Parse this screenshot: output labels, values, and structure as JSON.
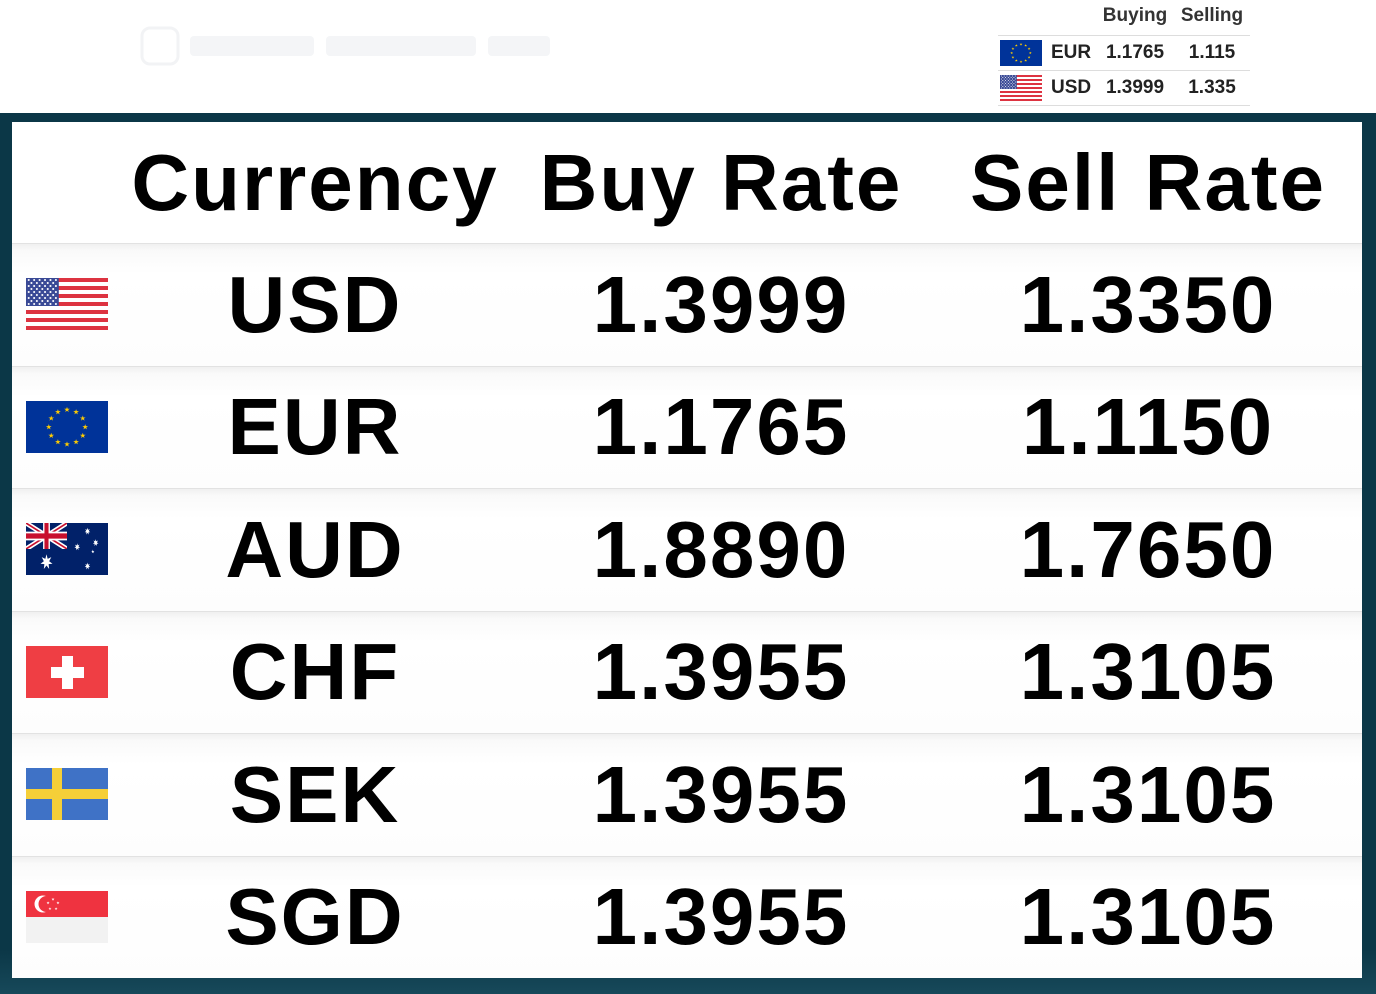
{
  "colors": {
    "frame": "#0b3747",
    "panel_background": "#ffffff",
    "text": "#000000",
    "ticker_text": "#222222"
  },
  "logo_icon": "company-logo-icon",
  "ticker": {
    "headers": {
      "buying": "Buying",
      "selling": "Selling"
    },
    "rows": [
      {
        "flag_icon": "eu-flag-icon",
        "code": "EUR",
        "buying": "1.1765",
        "selling": "1.115"
      },
      {
        "flag_icon": "us-flag-icon",
        "code": "USD",
        "buying": "1.3999",
        "selling": "1.335"
      }
    ]
  },
  "board": {
    "headers": {
      "currency": "Currency",
      "buy_rate": "Buy Rate",
      "sell_rate": "Sell Rate"
    },
    "rows": [
      {
        "flag_icon": "us-flag-icon",
        "code": "USD",
        "buy": "1.3999",
        "sell": "1.3350"
      },
      {
        "flag_icon": "eu-flag-icon",
        "code": "EUR",
        "buy": "1.1765",
        "sell": "1.1150"
      },
      {
        "flag_icon": "au-flag-icon",
        "code": "AUD",
        "buy": "1.8890",
        "sell": "1.7650"
      },
      {
        "flag_icon": "ch-flag-icon",
        "code": "CHF",
        "buy": "1.3955",
        "sell": "1.3105"
      },
      {
        "flag_icon": "se-flag-icon",
        "code": "SEK",
        "buy": "1.3955",
        "sell": "1.3105"
      },
      {
        "flag_icon": "sg-flag-icon",
        "code": "SGD",
        "buy": "1.3955",
        "sell": "1.3105"
      }
    ]
  }
}
